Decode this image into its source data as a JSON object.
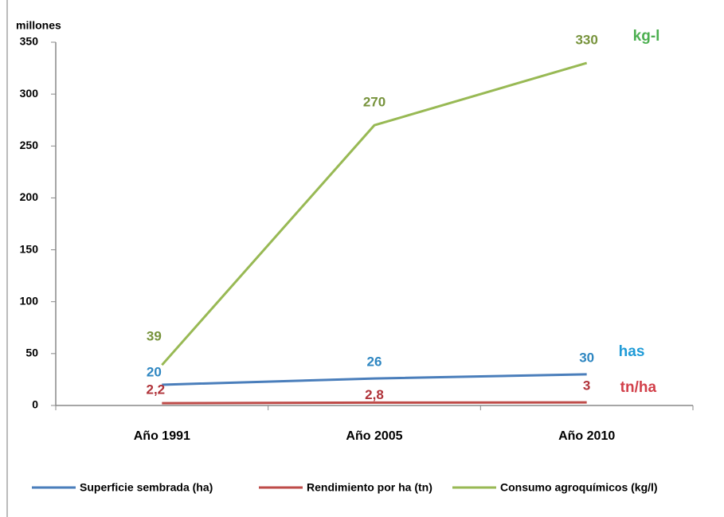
{
  "chart_data": {
    "type": "line",
    "y_axis_label": "millones",
    "categories": [
      "Año 1991",
      "Año 2005",
      "Año 2010"
    ],
    "ylim": [
      0,
      350
    ],
    "yticks": [
      0,
      50,
      100,
      150,
      200,
      250,
      300,
      350
    ],
    "grid": false,
    "legend": "bottom",
    "series": [
      {
        "name": "Superficie sembrada (ha)",
        "color": "#4a7ebb",
        "label_color": "#2e86c1",
        "values": [
          20,
          26,
          30
        ],
        "annotation": "has",
        "annotation_color": "#1f9bd7"
      },
      {
        "name": "Rendimiento por ha (tn)",
        "color": "#be4b48",
        "label_color": "#b0333a",
        "values": [
          2.2,
          2.8,
          3
        ],
        "value_labels": [
          "2,2",
          "2,8",
          "3"
        ],
        "annotation": "tn/ha",
        "annotation_color": "#d2404a"
      },
      {
        "name": "Consumo agroquímicos (kg/l)",
        "color": "#98b954",
        "label_color": "#77933c",
        "values": [
          39,
          270,
          330
        ],
        "annotation": "kg-l",
        "annotation_color": "#4caf50"
      }
    ]
  }
}
